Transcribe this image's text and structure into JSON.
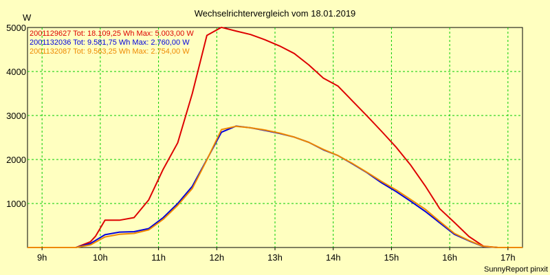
{
  "chart_data": {
    "type": "line",
    "title": "Wechselrichtervergleich vom 18.01.2019",
    "y_unit": "W",
    "footer": "SunnyReport pinxit",
    "xlim": [
      8.75,
      17.25
    ],
    "ylim": [
      0,
      5000
    ],
    "y_ticks": [
      1000,
      2000,
      3000,
      4000,
      5000
    ],
    "x_ticks": [
      {
        "value": 9,
        "label": "9h"
      },
      {
        "value": 10,
        "label": "10h"
      },
      {
        "value": 11,
        "label": "11h"
      },
      {
        "value": 12,
        "label": "12h"
      },
      {
        "value": 13,
        "label": "13h"
      },
      {
        "value": 14,
        "label": "14h"
      },
      {
        "value": 15,
        "label": "15h"
      },
      {
        "value": 16,
        "label": "16h"
      },
      {
        "value": 17,
        "label": "17h"
      }
    ],
    "grid": true,
    "legend_position": "top-left",
    "series": [
      {
        "legend": "2001129627 Tot: 18.109,25 Wh Max: 5.003,00 W",
        "color": "#dd0000",
        "x": [
          8.75,
          9.58,
          9.83,
          9.92,
          10.08,
          10.33,
          10.58,
          10.83,
          11.08,
          11.33,
          11.58,
          11.83,
          12.08,
          12.33,
          12.58,
          12.83,
          13.08,
          13.33,
          13.58,
          13.83,
          14.08,
          14.33,
          14.58,
          14.83,
          15.08,
          15.33,
          15.58,
          15.83,
          16.08,
          16.33,
          16.58,
          16.83,
          17.25
        ],
        "y": [
          0,
          0,
          130,
          260,
          620,
          620,
          680,
          1080,
          1780,
          2380,
          3500,
          4820,
          5003,
          4920,
          4840,
          4720,
          4580,
          4410,
          4150,
          3850,
          3670,
          3330,
          2990,
          2640,
          2280,
          1870,
          1400,
          880,
          570,
          250,
          30,
          0,
          0
        ]
      },
      {
        "legend": "2001132036 Tot: 9.581,75 Wh Max: 2.760,00 W",
        "color": "#0000dd",
        "x": [
          8.75,
          9.58,
          9.83,
          10.08,
          10.33,
          10.58,
          10.83,
          11.08,
          11.33,
          11.58,
          11.83,
          12.08,
          12.33,
          12.58,
          12.83,
          13.08,
          13.33,
          13.58,
          13.83,
          14.08,
          14.33,
          14.58,
          14.83,
          15.08,
          15.33,
          15.58,
          15.83,
          16.08,
          16.33,
          16.58,
          16.83,
          17.25
        ],
        "y": [
          0,
          0,
          90,
          290,
          350,
          360,
          430,
          680,
          1000,
          1390,
          2000,
          2620,
          2760,
          2720,
          2660,
          2590,
          2510,
          2390,
          2220,
          2090,
          1900,
          1700,
          1470,
          1270,
          1050,
          820,
          560,
          300,
          150,
          20,
          0,
          0
        ]
      },
      {
        "legend": "2001132087 Tot: 9.563,25 Wh Max: 2.754,00 W",
        "color": "#ee8800",
        "x": [
          8.75,
          9.58,
          9.83,
          10.08,
          10.33,
          10.58,
          10.83,
          11.08,
          11.33,
          11.58,
          11.83,
          12.08,
          12.33,
          12.58,
          12.83,
          13.08,
          13.33,
          13.58,
          13.83,
          14.08,
          14.33,
          14.58,
          14.83,
          15.08,
          15.33,
          15.58,
          15.83,
          16.08,
          16.33,
          16.58,
          16.83,
          17.25
        ],
        "y": [
          0,
          0,
          60,
          240,
          300,
          320,
          400,
          640,
          960,
          1340,
          1990,
          2680,
          2754,
          2720,
          2670,
          2600,
          2510,
          2390,
          2230,
          2090,
          1910,
          1710,
          1500,
          1310,
          1090,
          870,
          590,
          320,
          160,
          25,
          0,
          0
        ]
      }
    ]
  }
}
